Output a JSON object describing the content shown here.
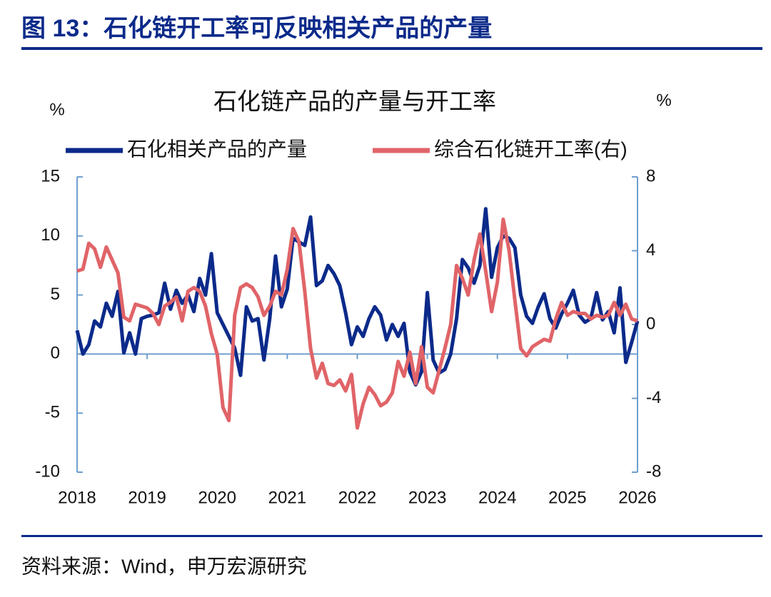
{
  "header": {
    "title": "图 13：石化链开工率可反映相关产品的产量"
  },
  "chart_data": {
    "type": "line",
    "title": "石化链产品的产量与开工率",
    "y_unit": "%",
    "y2_unit": "%",
    "x": [
      2018,
      2018.083,
      2018.167,
      2018.25,
      2018.333,
      2018.417,
      2018.5,
      2018.583,
      2018.667,
      2018.75,
      2018.833,
      2018.917,
      2019,
      2019.083,
      2019.167,
      2019.25,
      2019.333,
      2019.417,
      2019.5,
      2019.583,
      2019.667,
      2019.75,
      2019.833,
      2019.917,
      2020,
      2020.083,
      2020.167,
      2020.25,
      2020.333,
      2020.417,
      2020.5,
      2020.583,
      2020.667,
      2020.75,
      2020.833,
      2020.917,
      2021,
      2021.083,
      2021.167,
      2021.25,
      2021.333,
      2021.417,
      2021.5,
      2021.583,
      2021.667,
      2021.75,
      2021.833,
      2021.917,
      2022,
      2022.083,
      2022.167,
      2022.25,
      2022.333,
      2022.417,
      2022.5,
      2022.583,
      2022.667,
      2022.75,
      2022.833,
      2022.917,
      2023,
      2023.083,
      2023.167,
      2023.25,
      2023.333,
      2023.417,
      2023.5,
      2023.583,
      2023.667,
      2023.75,
      2023.833,
      2023.917,
      2024,
      2024.083,
      2024.167,
      2024.25,
      2024.333,
      2024.417,
      2024.5,
      2024.583,
      2024.667,
      2024.75,
      2024.833,
      2024.917,
      2025,
      2025.083,
      2025.167,
      2025.25,
      2025.333,
      2025.417,
      2025.5,
      2025.583,
      2025.667,
      2025.75,
      2025.833,
      2025.917,
      2026
    ],
    "series": [
      {
        "name": "石化相关产品的产量",
        "color": "#0b2a8a",
        "axis": "y",
        "values": [
          2,
          0,
          0.8,
          2.8,
          2.3,
          4.3,
          3.2,
          5.3,
          0.1,
          1.8,
          0,
          3,
          3.2,
          3.3,
          3.5,
          6,
          3.8,
          5.4,
          4.3,
          5,
          3.6,
          6.4,
          5,
          8.5,
          3.5,
          2.5,
          1.5,
          0.5,
          -1.8,
          4,
          2.8,
          3,
          -0.5,
          3,
          8.3,
          4,
          5.5,
          9.8,
          9.5,
          9.2,
          11.6,
          5.8,
          6.2,
          7.5,
          6.8,
          5.8,
          3.5,
          0.8,
          2.3,
          1.5,
          3,
          4,
          3.3,
          1.2,
          2.5,
          1.5,
          2.6,
          -1.5,
          -2.6,
          -1.5,
          5.2,
          -0.5,
          -1.6,
          -1.3,
          0,
          3,
          8,
          7.3,
          6,
          7.5,
          12.3,
          6.5,
          9,
          10,
          9.8,
          9,
          5,
          3.2,
          2.6,
          4,
          5.1,
          3,
          2.2,
          3.4,
          4.3,
          5.4,
          3.3,
          2.7,
          3,
          5.2,
          2.9,
          3.6,
          1.8,
          5.6,
          -0.7,
          1,
          2.8
        ]
      },
      {
        "name": "综合石化链开工率(右)",
        "color": "#e06468",
        "axis": "y2",
        "values": [
          2.9,
          3,
          4.4,
          4.1,
          3.1,
          4.2,
          3.5,
          2.8,
          0.4,
          0.2,
          1.1,
          1,
          0.9,
          0.6,
          0,
          1,
          1.2,
          1.5,
          0.2,
          1.8,
          2,
          1.8,
          1,
          -0.5,
          -1.6,
          -4.5,
          -5.2,
          0.5,
          2,
          2.2,
          2,
          1.5,
          0.5,
          1,
          1.8,
          1.6,
          3,
          5.2,
          4.5,
          1.8,
          -1.3,
          -2.9,
          -2.1,
          -3.2,
          -3.3,
          -3,
          -3.6,
          -2.7,
          -5.6,
          -4.3,
          -3.4,
          -3.8,
          -4.4,
          -4.2,
          -3.7,
          -2,
          -2.8,
          -1.5,
          -3.2,
          -1.2,
          -3.4,
          -3.7,
          -2.5,
          -1.3,
          0,
          3.2,
          2.5,
          1.6,
          3.5,
          4.9,
          2.9,
          0.7,
          2.3,
          5.7,
          4,
          1.3,
          -1.3,
          -1.7,
          -1.2,
          -1,
          -0.8,
          -0.9,
          0.3,
          1.2,
          0.5,
          0.7,
          0.6,
          0.6,
          0.3,
          0.5,
          0.4,
          0.5,
          1.2,
          0.5,
          1.1,
          0.3,
          0.2
        ]
      }
    ],
    "xlim": [
      2018,
      2026
    ],
    "xticks": [
      2018,
      2019,
      2020,
      2021,
      2022,
      2023,
      2024,
      2025,
      2026
    ],
    "ylim": [
      -10,
      15
    ],
    "yticks": [
      15,
      10,
      5,
      0,
      -5,
      -10
    ],
    "y2lim": [
      -8,
      8
    ],
    "y2ticks": [
      8,
      4,
      0,
      -4,
      -8
    ],
    "legend": "top"
  },
  "footer": {
    "source": "资料来源：Wind，申万宏源研究"
  }
}
